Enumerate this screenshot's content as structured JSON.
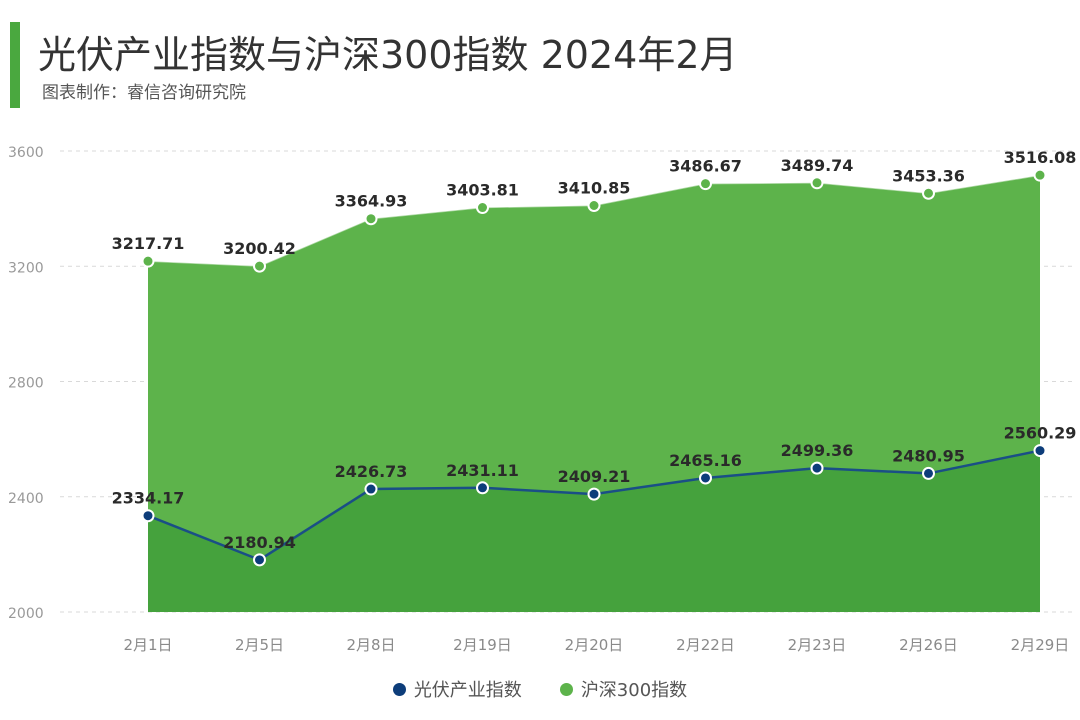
{
  "header": {
    "title": "光伏产业指数与沪深300指数 2024年2月",
    "subtitle": "图表制作：睿信咨询研究院"
  },
  "chart_data": {
    "type": "area",
    "title": "光伏产业指数与沪深300指数 2024年2月",
    "xlabel": "",
    "ylabel": "",
    "categories": [
      "2月1日",
      "2月5日",
      "2月8日",
      "2月19日",
      "2月20日",
      "2月22日",
      "2月23日",
      "2月26日",
      "2月29日"
    ],
    "y_ticks": [
      2000,
      2400,
      2800,
      3200,
      3600
    ],
    "ylim": [
      2000,
      3600
    ],
    "grid": true,
    "legend_position": "bottom",
    "series": [
      {
        "name": "光伏产业指数",
        "color": "#0d3d7a",
        "fill": "#45a23d",
        "values": [
          2334.17,
          2180.94,
          2426.73,
          2431.11,
          2409.21,
          2465.16,
          2499.36,
          2480.95,
          2560.29
        ],
        "labels": [
          "2334.17",
          "2180.94",
          "2426.73",
          "2431.11",
          "2409.21",
          "2465.16",
          "2499.36",
          "2480.95",
          "2560.29"
        ]
      },
      {
        "name": "沪深300指数",
        "color": "#5db34b",
        "fill": "#5db34b",
        "values": [
          3217.71,
          3200.42,
          3364.93,
          3403.81,
          3410.85,
          3486.67,
          3489.74,
          3453.36,
          3516.08
        ],
        "labels": [
          "3217.71",
          "3200.42",
          "3364.93",
          "3403.81",
          "3410.85",
          "3486.67",
          "3489.74",
          "3453.36",
          "3516.08"
        ]
      }
    ]
  }
}
